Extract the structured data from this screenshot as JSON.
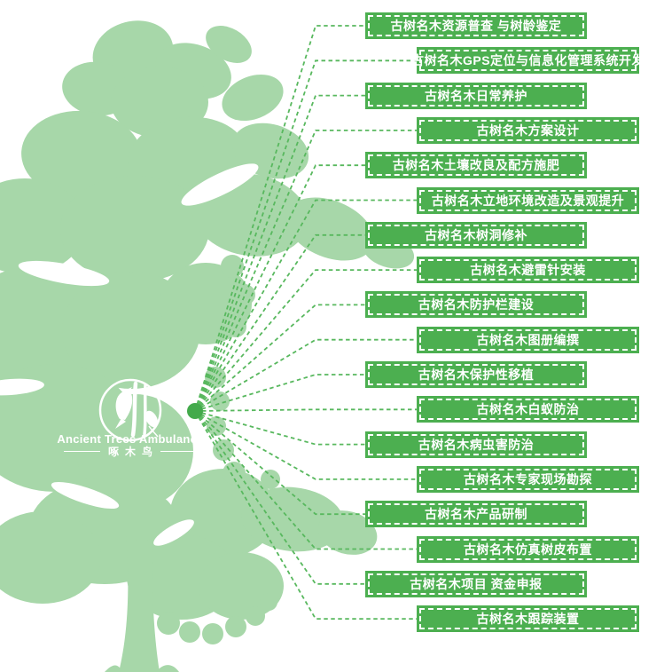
{
  "colors": {
    "banner_green": "#4caf50",
    "tree_green": "#a7d7a9",
    "connector_green": "#58b85e",
    "hub_dot_green": "#43aa4b",
    "text_white": "#ffffff"
  },
  "logo": {
    "icon": "woodpecker-in-circle",
    "title": "Ancient Trees Ambulance",
    "subtitle": "啄木鸟"
  },
  "diagram": {
    "hub": "tree-hub-dot",
    "services": [
      "古树名木资源普查 与树龄鉴定",
      "古树名木GPS定位与信息化管理系统开发",
      "古树名木日常养护",
      "古树名木方案设计",
      "古树名木土壤改良及配方施肥",
      "古树名木立地环境改造及景观提升",
      "古树名木树洞修补",
      "古树名木避雷针安装",
      "古树名木防护栏建设",
      "古树名木图册编撰",
      "古树名木保护性移植",
      "古树名木白蚁防治",
      "古树名木病虫害防治",
      "古树名木专家现场勘探",
      "古树名木产品研制",
      "古树名木仿真树皮布置",
      "古树名木项目 资金申报",
      "古树名木跟踪装置"
    ]
  }
}
